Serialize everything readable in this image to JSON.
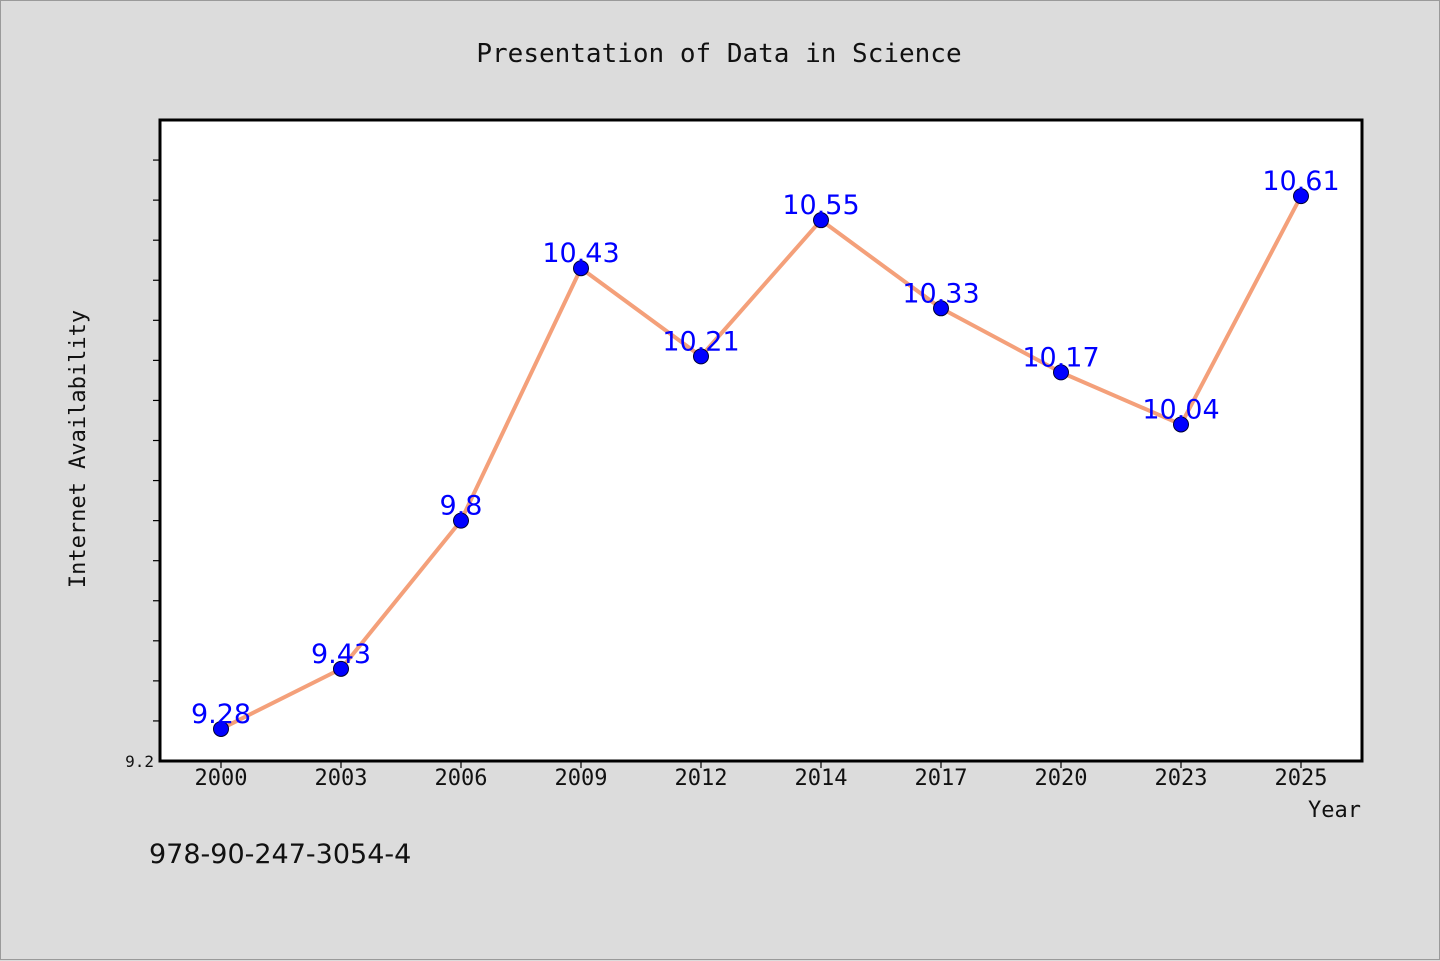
{
  "chart_data": {
    "type": "line",
    "title": "Presentation of Data in Science",
    "xlabel": "Year",
    "ylabel": "Internet Availability",
    "x": [
      "2000",
      "2003",
      "2006",
      "2009",
      "2012",
      "2014",
      "2017",
      "2020",
      "2023",
      "2025"
    ],
    "series": [
      {
        "values": [
          9.28,
          9.43,
          9.8,
          10.43,
          10.21,
          10.55,
          10.33,
          10.17,
          10.04,
          10.61
        ]
      }
    ],
    "data_labels": [
      "9.28",
      "9.43",
      "9.8",
      "10.43",
      "10.21",
      "10.55",
      "10.33",
      "10.17",
      "10.04",
      "10.61"
    ],
    "yticks_labeled": [
      "9.2"
    ],
    "ylim": [
      9.2,
      10.8
    ],
    "grid": false,
    "legend": "none",
    "colors": {
      "line": "#f4a07a",
      "marker": "#0000ff",
      "data_label": "#0000ff",
      "plot_background": "#ffffff",
      "figure_background": "#dcdcdc"
    }
  },
  "footer_text": "978-90-247-3054-4"
}
